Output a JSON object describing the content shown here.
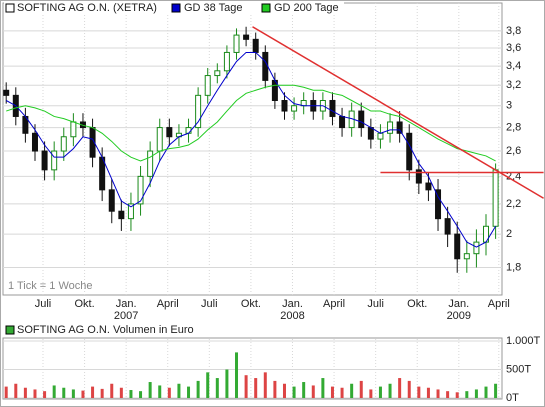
{
  "chart_data": [
    {
      "type": "candlestick",
      "legend_label": "SOFTING AG O.N. (XETRA)",
      "annotation": "1 Tick = 1 Woche",
      "x": [
        1,
        4,
        7,
        10,
        13,
        16,
        19,
        22,
        25,
        28,
        31,
        34,
        37,
        40,
        43,
        46,
        49,
        52,
        55,
        58,
        61,
        64,
        67,
        70,
        73,
        76,
        79,
        82,
        85,
        88,
        91,
        94,
        97,
        100,
        103,
        106,
        109,
        112,
        115,
        118,
        121,
        124,
        127,
        130,
        133,
        136,
        139,
        142,
        145,
        148,
        151,
        154
      ],
      "open": [
        3.15,
        3.1,
        2.9,
        2.75,
        2.6,
        2.45,
        2.6,
        2.72,
        2.85,
        2.8,
        2.55,
        2.3,
        2.15,
        2.1,
        2.2,
        2.4,
        2.6,
        2.8,
        2.72,
        2.75,
        2.8,
        3.1,
        3.3,
        3.35,
        3.55,
        3.75,
        3.7,
        3.55,
        3.25,
        3.05,
        2.95,
        3.0,
        3.05,
        2.95,
        3.05,
        2.9,
        2.8,
        2.95,
        2.8,
        2.7,
        2.75,
        2.85,
        2.75,
        2.45,
        2.35,
        2.3,
        2.1,
        2.0,
        1.85,
        1.88,
        1.95,
        2.05
      ],
      "high": [
        3.23,
        3.18,
        2.98,
        2.83,
        2.68,
        2.68,
        2.8,
        2.93,
        2.93,
        2.88,
        2.63,
        2.38,
        2.23,
        2.28,
        2.48,
        2.68,
        2.88,
        2.88,
        2.83,
        2.88,
        3.18,
        3.38,
        3.43,
        3.63,
        3.83,
        3.85,
        3.78,
        3.63,
        3.33,
        3.13,
        3.08,
        3.13,
        3.13,
        3.13,
        3.13,
        2.98,
        3.03,
        3.03,
        2.88,
        2.83,
        2.93,
        2.95,
        2.83,
        2.53,
        2.43,
        2.38,
        2.18,
        2.08,
        1.96,
        2.03,
        2.13,
        2.5
      ],
      "low": [
        3.02,
        2.82,
        2.67,
        2.52,
        2.37,
        2.37,
        2.52,
        2.64,
        2.72,
        2.47,
        2.22,
        2.07,
        2.02,
        2.02,
        2.12,
        2.32,
        2.52,
        2.64,
        2.64,
        2.67,
        2.72,
        3.02,
        3.22,
        3.27,
        3.47,
        3.62,
        3.47,
        3.17,
        2.97,
        2.87,
        2.87,
        2.92,
        2.87,
        2.87,
        2.82,
        2.72,
        2.72,
        2.72,
        2.62,
        2.62,
        2.67,
        2.67,
        2.37,
        2.27,
        2.22,
        2.02,
        1.92,
        1.77,
        1.77,
        1.8,
        1.87,
        1.97
      ],
      "close": [
        3.1,
        2.9,
        2.75,
        2.6,
        2.45,
        2.6,
        2.72,
        2.85,
        2.8,
        2.55,
        2.3,
        2.15,
        2.1,
        2.2,
        2.4,
        2.6,
        2.8,
        2.72,
        2.75,
        2.8,
        3.1,
        3.3,
        3.35,
        3.55,
        3.75,
        3.7,
        3.55,
        3.25,
        3.05,
        2.95,
        3.0,
        3.05,
        2.95,
        3.05,
        2.9,
        2.8,
        2.95,
        2.8,
        2.7,
        2.75,
        2.85,
        2.75,
        2.45,
        2.35,
        2.3,
        2.1,
        2.0,
        1.85,
        1.88,
        1.95,
        2.05,
        2.45
      ],
      "up_color": "#1a8a1a",
      "down_color": "#111111",
      "series": [
        {
          "name": "GD 38 Tage",
          "color": "#0000cc",
          "values": [
            3.05,
            3.0,
            2.9,
            2.78,
            2.65,
            2.55,
            2.55,
            2.62,
            2.72,
            2.7,
            2.55,
            2.38,
            2.22,
            2.18,
            2.22,
            2.35,
            2.52,
            2.65,
            2.72,
            2.75,
            2.85,
            3.0,
            3.15,
            3.3,
            3.45,
            3.55,
            3.55,
            3.45,
            3.25,
            3.1,
            3.02,
            3.0,
            3.0,
            3.0,
            2.95,
            2.9,
            2.88,
            2.85,
            2.8,
            2.75,
            2.78,
            2.78,
            2.65,
            2.5,
            2.4,
            2.25,
            2.15,
            2.05,
            1.95,
            1.92,
            1.95,
            2.05
          ]
        },
        {
          "name": "GD 200 Tage",
          "color": "#22cc22",
          "values": [
            2.95,
            2.98,
            3.0,
            2.98,
            2.95,
            2.9,
            2.88,
            2.85,
            2.82,
            2.8,
            2.75,
            2.68,
            2.6,
            2.55,
            2.52,
            2.55,
            2.6,
            2.62,
            2.63,
            2.65,
            2.7,
            2.78,
            2.85,
            2.95,
            3.05,
            3.12,
            3.15,
            3.18,
            3.2,
            3.2,
            3.2,
            3.18,
            3.15,
            3.15,
            3.12,
            3.1,
            3.05,
            3.0,
            2.95,
            2.95,
            2.92,
            2.9,
            2.85,
            2.8,
            2.75,
            2.7,
            2.66,
            2.62,
            2.6,
            2.58,
            2.56,
            2.52
          ]
        }
      ],
      "trend_lines": [
        {
          "x": [
            78,
            169
          ],
          "y": [
            3.85,
            2.24
          ]
        },
        {
          "x": [
            118,
            169
          ],
          "y": [
            2.43,
            2.43
          ]
        }
      ],
      "trend_color": "#e03030",
      "xlim": [
        0,
        156
      ],
      "xticks": [
        {
          "value": 12.5,
          "label": "Juli"
        },
        {
          "value": 25.5,
          "label": "Okt."
        },
        {
          "value": 38.5,
          "label": "Jan."
        },
        {
          "value": 51.5,
          "label": "April"
        },
        {
          "value": 64.5,
          "label": "Juli"
        },
        {
          "value": 77.5,
          "label": "Okt."
        },
        {
          "value": 90.5,
          "label": "Jan."
        },
        {
          "value": 103.5,
          "label": "April"
        },
        {
          "value": 116.5,
          "label": "Juli"
        },
        {
          "value": 129.5,
          "label": "Okt."
        },
        {
          "value": 142.5,
          "label": "Jan."
        },
        {
          "value": 155,
          "label": "April"
        }
      ],
      "year_labels": [
        {
          "value": 38.5,
          "label": "2007"
        },
        {
          "value": 90.5,
          "label": "2008"
        },
        {
          "value": 142.5,
          "label": "2009"
        }
      ],
      "ylim": [
        1.65,
        4.15
      ],
      "log": true,
      "yticks": [
        {
          "value": 1.8,
          "label": "1,8"
        },
        2,
        {
          "value": 2.2,
          "label": "2,2"
        },
        {
          "value": 2.4,
          "label": "2,4"
        },
        {
          "value": 2.6,
          "label": "2,6"
        },
        {
          "value": 2.8,
          "label": "2,8"
        },
        3,
        {
          "value": 3.2,
          "label": "3,2"
        },
        {
          "value": 3.4,
          "label": "3,4"
        },
        {
          "value": 3.6,
          "label": "3,6"
        },
        {
          "value": 3.8,
          "label": "3,8"
        }
      ],
      "grid": true
    },
    {
      "type": "bar",
      "title": "SOFTING AG O.N. Volumen in Euro",
      "legend_color": "#33aa33",
      "x": [
        1,
        4,
        7,
        10,
        13,
        16,
        19,
        22,
        25,
        28,
        31,
        34,
        37,
        40,
        43,
        46,
        49,
        52,
        55,
        58,
        61,
        64,
        67,
        70,
        73,
        76,
        79,
        82,
        85,
        88,
        91,
        94,
        97,
        100,
        103,
        106,
        109,
        112,
        115,
        118,
        121,
        124,
        127,
        130,
        133,
        136,
        139,
        142,
        145,
        148,
        151,
        154
      ],
      "values": [
        200000,
        250000,
        180000,
        150000,
        120000,
        220000,
        180000,
        150000,
        130000,
        200000,
        160000,
        250000,
        180000,
        140000,
        120000,
        280000,
        220000,
        180000,
        250000,
        200000,
        300000,
        450000,
        350000,
        500000,
        800000,
        400000,
        350000,
        450000,
        300000,
        250000,
        200000,
        280000,
        220000,
        350000,
        200000,
        180000,
        250000,
        300000,
        150000,
        200000,
        250000,
        350000,
        300000,
        200000,
        180000,
        150000,
        120000,
        100000,
        120000,
        150000,
        200000,
        250000
      ],
      "up_color": "#33aa33",
      "down_color": "#dd4444",
      "xlim": [
        0,
        156
      ],
      "ylim": [
        0,
        1000000
      ],
      "yticks": [
        {
          "value": 0,
          "label": "0T"
        },
        {
          "value": 500000,
          "label": "500T"
        },
        {
          "value": 1000000,
          "label": "1.000T"
        }
      ],
      "grid": true
    }
  ]
}
